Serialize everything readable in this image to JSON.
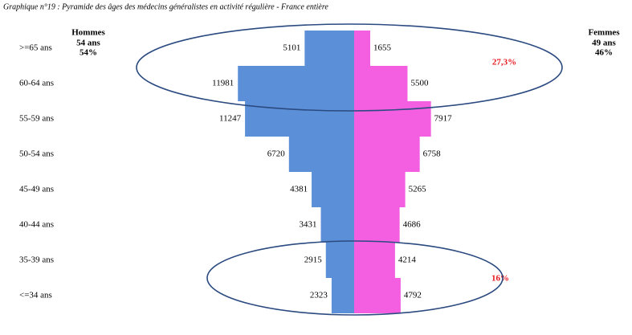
{
  "chart_data": {
    "type": "pyramid",
    "title": "Graphique n°19 : Pyramide des âges des médecins généralistes en activité régulière  - France entière",
    "categories": [
      ">=65 ans",
      "60-64 ans",
      "55-59 ans",
      "50-54 ans",
      "45-49 ans",
      "40-44 ans",
      "35-39 ans",
      "<=34 ans"
    ],
    "series": [
      {
        "name": "Hommes",
        "color": "#5b8fd8",
        "values": [
          5101,
          11981,
          11247,
          6720,
          4381,
          3431,
          2915,
          2323
        ]
      },
      {
        "name": "Femmes",
        "color": "#f35fe0",
        "values": [
          1655,
          5500,
          7917,
          6758,
          5265,
          4686,
          4214,
          4792
        ]
      }
    ],
    "series_notes": [
      [
        "54 ans",
        "54%"
      ],
      [
        "49 ans",
        "46%"
      ]
    ],
    "annotations": [
      "27,3%",
      "16%"
    ]
  }
}
